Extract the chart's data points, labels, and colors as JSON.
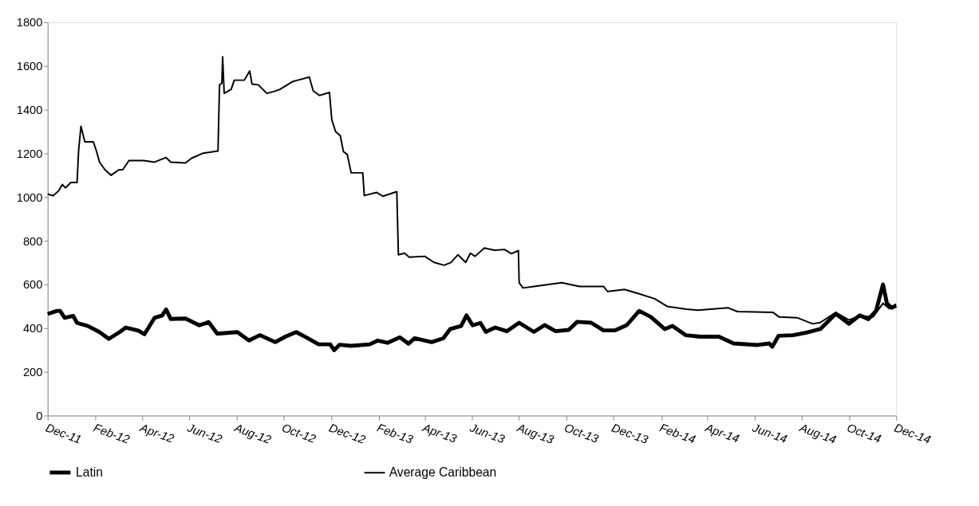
{
  "chart_data": {
    "type": "line",
    "xlim": [
      "2011-12-01",
      "2014-12-01"
    ],
    "xticks": [
      {
        "value": "2011-12-01",
        "label": "Dec-11"
      },
      {
        "value": "2012-02-01",
        "label": "Feb-12"
      },
      {
        "value": "2012-04-01",
        "label": "Apr-12"
      },
      {
        "value": "2012-06-01",
        "label": "Jun-12"
      },
      {
        "value": "2012-08-01",
        "label": "Aug-12"
      },
      {
        "value": "2012-10-01",
        "label": "Oct-12"
      },
      {
        "value": "2012-12-01",
        "label": "Dec-12"
      },
      {
        "value": "2013-02-01",
        "label": "Feb-13"
      },
      {
        "value": "2013-04-01",
        "label": "Apr-13"
      },
      {
        "value": "2013-06-01",
        "label": "Jun-13"
      },
      {
        "value": "2013-08-01",
        "label": "Aug-13"
      },
      {
        "value": "2013-10-01",
        "label": "Oct-13"
      },
      {
        "value": "2013-12-01",
        "label": "Dec-13"
      },
      {
        "value": "2014-02-01",
        "label": "Feb-14"
      },
      {
        "value": "2014-04-01",
        "label": "Apr-14"
      },
      {
        "value": "2014-06-01",
        "label": "Jun-14"
      },
      {
        "value": "2014-08-01",
        "label": "Aug-14"
      },
      {
        "value": "2014-10-01",
        "label": "Oct-14"
      },
      {
        "value": "2014-12-01",
        "label": "Dec-14"
      }
    ],
    "ylim": [
      0,
      1800
    ],
    "yticks": [
      0,
      200,
      400,
      600,
      800,
      1000,
      1200,
      1400,
      1600,
      1800
    ],
    "grid": false,
    "legend": "bottom",
    "line_style": "solid",
    "marker": "none",
    "series": [
      {
        "name": "Latin",
        "color": "#000000",
        "x": [
          "2011-12-01",
          "2011-12-13",
          "2011-12-17",
          "2011-12-23",
          "2012-01-03",
          "2012-01-08",
          "2012-01-22",
          "2012-02-06",
          "2012-02-18",
          "2012-03-03",
          "2012-03-11",
          "2012-03-27",
          "2012-04-04",
          "2012-04-17",
          "2012-04-27",
          "2012-05-02",
          "2012-05-08",
          "2012-05-27",
          "2012-06-14",
          "2012-06-26",
          "2012-07-07",
          "2012-08-02",
          "2012-08-17",
          "2012-08-31",
          "2012-09-20",
          "2012-10-03",
          "2012-10-17",
          "2012-10-30",
          "2012-11-15",
          "2012-11-30",
          "2012-12-05",
          "2012-12-12",
          "2012-12-27",
          "2013-01-20",
          "2013-01-30",
          "2013-02-12",
          "2013-02-28",
          "2013-03-11",
          "2013-03-19",
          "2013-04-10",
          "2013-04-25",
          "2013-05-04",
          "2013-05-18",
          "2013-05-25",
          "2013-06-02",
          "2013-06-12",
          "2013-06-19",
          "2013-07-01",
          "2013-07-16",
          "2013-08-01",
          "2013-08-20",
          "2013-09-03",
          "2013-09-17",
          "2013-10-04",
          "2013-10-15",
          "2013-11-02",
          "2013-11-18",
          "2013-12-03",
          "2013-12-18",
          "2014-01-03",
          "2014-01-18",
          "2014-02-05",
          "2014-02-15",
          "2014-03-04",
          "2014-03-23",
          "2014-04-16",
          "2014-05-05",
          "2014-06-05",
          "2014-06-20",
          "2014-06-24",
          "2014-07-02",
          "2014-07-21",
          "2014-08-06",
          "2014-08-25",
          "2014-09-14",
          "2014-10-01",
          "2014-10-15",
          "2014-10-26",
          "2014-11-05",
          "2014-11-14",
          "2014-11-19",
          "2014-11-25",
          "2014-12-01"
        ],
        "values": [
          465,
          479,
          479,
          447,
          456,
          424,
          410,
          382,
          351,
          382,
          403,
          389,
          372,
          447,
          458,
          486,
          442,
          444,
          413,
          428,
          375,
          382,
          344,
          368,
          336,
          361,
          382,
          358,
          326,
          326,
          299,
          324,
          319,
          326,
          343,
          333,
          358,
          329,
          354,
          336,
          354,
          396,
          410,
          458,
          413,
          424,
          383,
          403,
          386,
          425,
          383,
          414,
          386,
          392,
          429,
          425,
          390,
          390,
          414,
          479,
          452,
          396,
          410,
          368,
          361,
          361,
          330,
          323,
          330,
          315,
          365,
          368,
          379,
          396,
          466,
          420,
          459,
          441,
          479,
          600,
          514,
          493,
          503
        ]
      },
      {
        "name": "Average Caribbean",
        "color": "#000000",
        "x": [
          "2011-12-01",
          "2011-12-08",
          "2011-12-15",
          "2011-12-20",
          "2011-12-24",
          "2011-12-31",
          "2012-01-08",
          "2012-01-10",
          "2012-01-13",
          "2012-01-18",
          "2012-01-29",
          "2012-02-02",
          "2012-02-06",
          "2012-02-13",
          "2012-02-21",
          "2012-03-02",
          "2012-03-07",
          "2012-03-15",
          "2012-04-03",
          "2012-04-17",
          "2012-05-02",
          "2012-05-08",
          "2012-05-27",
          "2012-06-04",
          "2012-06-19",
          "2012-07-08",
          "2012-07-10",
          "2012-07-13",
          "2012-07-14",
          "2012-07-16",
          "2012-07-25",
          "2012-07-29",
          "2012-08-11",
          "2012-08-18",
          "2012-08-21",
          "2012-08-29",
          "2012-09-09",
          "2012-09-19",
          "2012-09-26",
          "2012-10-12",
          "2012-10-19",
          "2012-11-03",
          "2012-11-08",
          "2012-11-16",
          "2012-11-29",
          "2012-12-02",
          "2012-12-07",
          "2012-12-13",
          "2012-12-17",
          "2012-12-22",
          "2012-12-27",
          "2013-01-11",
          "2013-01-13",
          "2013-01-29",
          "2013-02-06",
          "2013-02-24",
          "2013-02-26",
          "2013-03-06",
          "2013-03-12",
          "2013-04-01",
          "2013-04-13",
          "2013-04-26",
          "2013-05-05",
          "2013-05-14",
          "2013-05-24",
          "2013-05-30",
          "2013-06-05",
          "2013-06-17",
          "2013-06-30",
          "2013-07-13",
          "2013-07-22",
          "2013-07-31",
          "2013-08-01",
          "2013-08-06",
          "2013-08-20",
          "2013-09-25",
          "2013-10-18",
          "2013-11-18",
          "2013-11-23",
          "2013-12-15",
          "2014-01-04",
          "2014-01-23",
          "2014-02-08",
          "2014-03-05",
          "2014-03-20",
          "2014-04-28",
          "2014-05-10",
          "2014-06-25",
          "2014-07-03",
          "2014-07-26",
          "2014-08-15",
          "2014-08-25",
          "2014-09-14",
          "2014-10-01",
          "2014-10-15",
          "2014-11-01",
          "2014-11-14",
          "2014-11-22",
          "2014-12-01"
        ],
        "values": [
          1014,
          1006,
          1028,
          1058,
          1042,
          1067,
          1067,
          1215,
          1324,
          1253,
          1253,
          1211,
          1160,
          1125,
          1100,
          1125,
          1125,
          1167,
          1167,
          1160,
          1181,
          1160,
          1156,
          1178,
          1201,
          1211,
          1514,
          1521,
          1642,
          1475,
          1493,
          1535,
          1535,
          1577,
          1517,
          1514,
          1475,
          1484,
          1493,
          1528,
          1535,
          1549,
          1486,
          1465,
          1479,
          1354,
          1299,
          1281,
          1208,
          1195,
          1111,
          1111,
          1007,
          1021,
          1004,
          1025,
          736,
          743,
          725,
          729,
          701,
          688,
          701,
          736,
          701,
          743,
          729,
          767,
          757,
          760,
          741,
          755,
          608,
          584,
          591,
          608,
          591,
          591,
          568,
          577,
          556,
          535,
          500,
          487,
          482,
          493,
          476,
          472,
          451,
          448,
          420,
          426,
          472,
          437,
          457,
          451,
          514,
          490,
          510
        ]
      }
    ]
  }
}
